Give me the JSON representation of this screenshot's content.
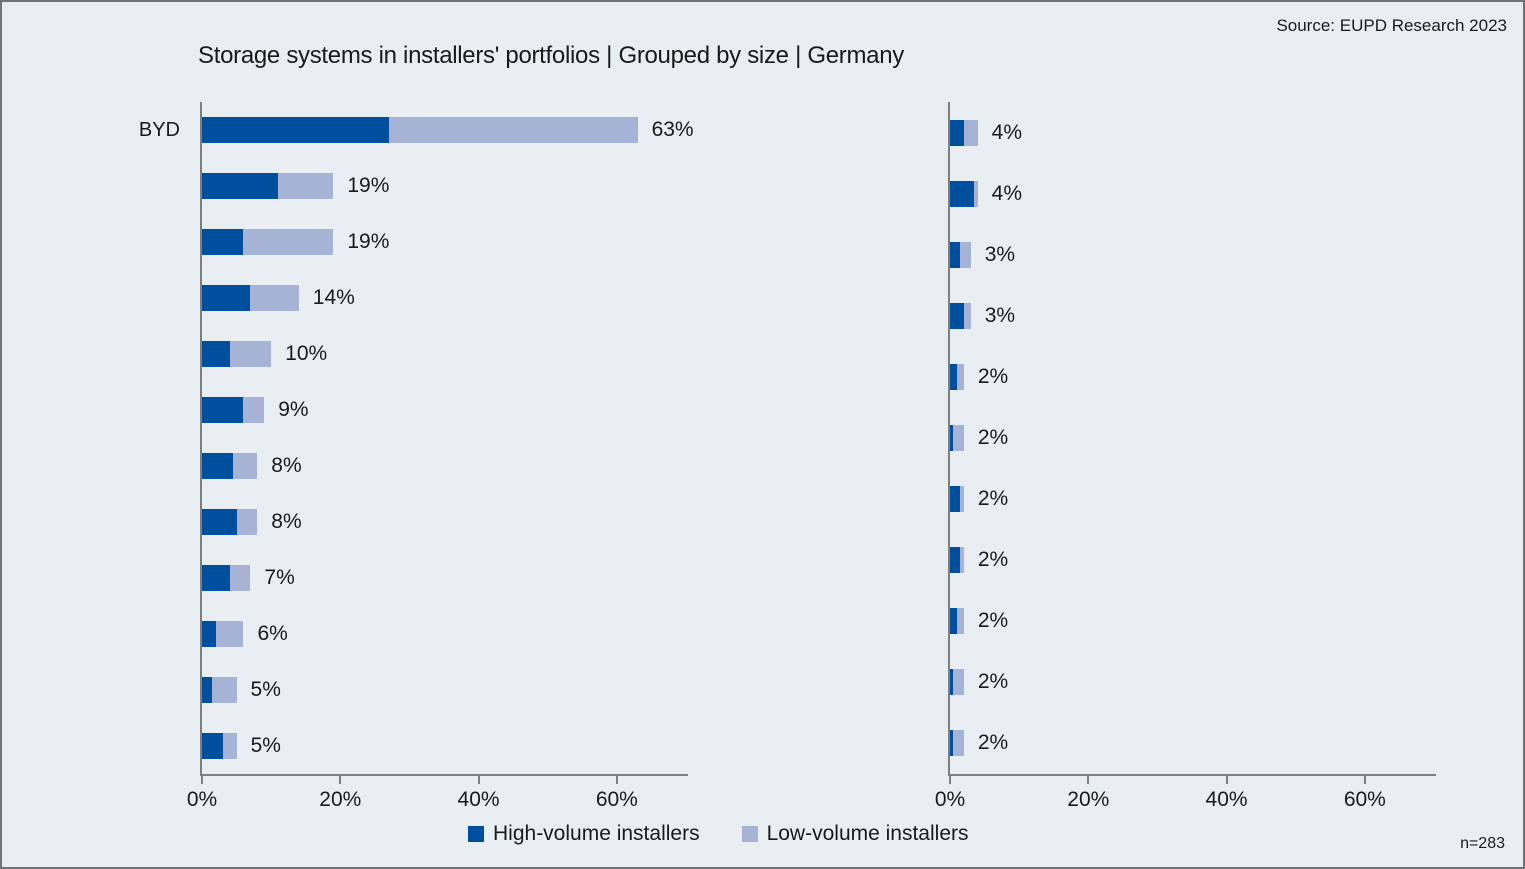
{
  "header": {
    "title": "Storage systems in installers' portfolios | Grouped by size | Germany",
    "source": "Source: EUPD Research 2023",
    "sample_note": "n=283"
  },
  "legend": {
    "items": [
      {
        "label": "High-volume installers",
        "color": "#004F9F"
      },
      {
        "label": "Low-volume installers",
        "color": "#A6B3D4"
      }
    ]
  },
  "colors": {
    "background": "#E9EEF2",
    "frame_border": "#6E7479",
    "axis": "#7F7F7F",
    "high_volume": "#004F9F",
    "low_volume": "#A6B3D4",
    "text": "#1A1A1A"
  },
  "chart_data": [
    {
      "type": "bar",
      "orientation": "horizontal",
      "panel": "left",
      "categories": [
        "BYD",
        "",
        "",
        "",
        "",
        "",
        "",
        "",
        "",
        "",
        "",
        ""
      ],
      "series": [
        {
          "name": "High-volume installers",
          "color": "#004F9F",
          "values": [
            27,
            11,
            6,
            7,
            4,
            6,
            4.5,
            5,
            4,
            2,
            1.5,
            3
          ]
        },
        {
          "name": "Low-volume installers",
          "color": "#A6B3D4",
          "values": [
            36,
            8,
            13,
            7,
            6,
            3,
            3.5,
            3,
            3,
            4,
            3.5,
            2
          ]
        }
      ],
      "total_labels": [
        "63%",
        "19%",
        "19%",
        "14%",
        "10%",
        "9%",
        "8%",
        "8%",
        "7%",
        "6%",
        "5%",
        "5%"
      ],
      "totals": [
        63,
        19,
        19,
        14,
        10,
        9,
        8,
        8,
        7,
        6,
        5,
        5
      ],
      "x_tick_values": [
        0,
        20,
        40,
        60
      ],
      "x_tick_labels": [
        "0%",
        "20%",
        "40%",
        "60%"
      ],
      "xlim": [
        0,
        70
      ],
      "grid": false,
      "legend_position": "bottom"
    },
    {
      "type": "bar",
      "orientation": "horizontal",
      "panel": "right",
      "categories": [
        "",
        "",
        "",
        "",
        "",
        "",
        "",
        "",
        "",
        "",
        ""
      ],
      "series": [
        {
          "name": "High-volume installers",
          "color": "#004F9F",
          "values": [
            2,
            3.5,
            1.5,
            2,
            1,
            0.5,
            1.5,
            1.5,
            1,
            0.5,
            0.5
          ]
        },
        {
          "name": "Low-volume installers",
          "color": "#A6B3D4",
          "values": [
            2,
            0.5,
            1.5,
            1,
            1,
            1.5,
            0.5,
            0.5,
            1,
            1.5,
            1.5
          ]
        }
      ],
      "total_labels": [
        "4%",
        "4%",
        "3%",
        "3%",
        "2%",
        "2%",
        "2%",
        "2%",
        "2%",
        "2%",
        "2%"
      ],
      "totals": [
        4,
        4,
        3,
        3,
        2,
        2,
        2,
        2,
        2,
        2,
        2
      ],
      "x_tick_values": [
        0,
        20,
        40,
        60
      ],
      "x_tick_labels": [
        "0%",
        "20%",
        "40%",
        "60%"
      ],
      "xlim": [
        0,
        70
      ],
      "grid": false,
      "legend_position": "bottom"
    }
  ]
}
